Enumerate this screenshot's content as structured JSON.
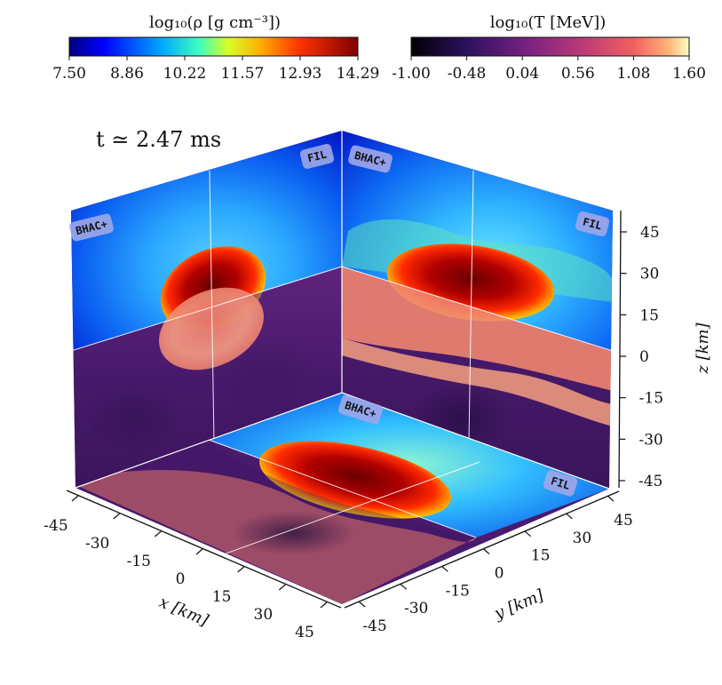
{
  "annotation": {
    "time_text": "t ≃ 2.47 ms"
  },
  "colorbars": [
    {
      "title": "log₁₀(ρ [g cm⁻³])",
      "ticks": [
        "7.50",
        "8.86",
        "10.22",
        "11.57",
        "12.93",
        "14.29"
      ],
      "colormap": "jet-like (blue → cyan → yellow → red → dark red)"
    },
    {
      "title": "log₁₀(T [MeV])",
      "ticks": [
        "-1.00",
        "-0.48",
        "0.04",
        "0.56",
        "1.08",
        "1.60"
      ],
      "colormap": "magma (black → purple → orange → cream)"
    }
  ],
  "panel_tags": {
    "left_wall_bhac": "BHAC+",
    "left_wall_fil": "FIL",
    "right_wall_bhac": "BHAC+",
    "right_wall_fil": "FIL",
    "floor_bhac": "BHAC+",
    "floor_fil": "FIL"
  },
  "chart_data": {
    "type": "heatmap",
    "title": "",
    "description_of_content": "3D projection of density (upper halves / inner floor half) and temperature (lower halves / outer floor half) slices on three orthogonal planes",
    "x_axis": {
      "label": "x [km]",
      "ticks": [
        "-45",
        "-30",
        "-15",
        "0",
        "15",
        "30",
        "45"
      ],
      "range": [
        -45,
        45
      ]
    },
    "y_axis": {
      "label": "y [km]",
      "ticks": [
        "-45",
        "-30",
        "-15",
        "0",
        "15",
        "30",
        "45"
      ],
      "range": [
        -45,
        45
      ]
    },
    "z_axis": {
      "label": "z [km]",
      "ticks": [
        "45",
        "30",
        "15",
        "0",
        "-15",
        "-30",
        "-45"
      ],
      "range": [
        -45,
        45
      ]
    },
    "density_range_log10": [
      7.5,
      14.29
    ],
    "temperature_range_log10": [
      -1.0,
      1.6
    ],
    "grid": false
  }
}
